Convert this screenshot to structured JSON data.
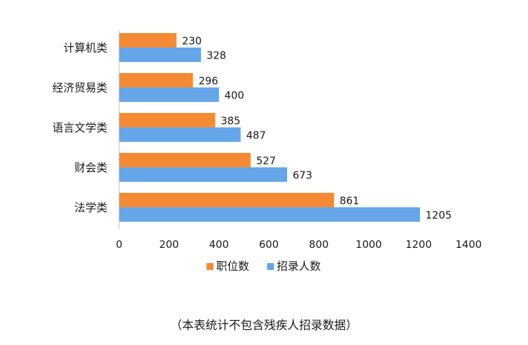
{
  "chart_data": {
    "type": "bar",
    "orientation": "horizontal",
    "categories": [
      "计算机类",
      "经济贸易类",
      "语言文学类",
      "财会类",
      "法学类"
    ],
    "series": [
      {
        "name": "职位数",
        "color": "#F58A34",
        "values": [
          230,
          296,
          385,
          527,
          861
        ]
      },
      {
        "name": "招录人数",
        "color": "#64A6E8",
        "values": [
          328,
          400,
          487,
          673,
          1205
        ]
      }
    ],
    "xlim": [
      0,
      1400
    ],
    "x_ticks": [
      0,
      200,
      400,
      600,
      800,
      1000,
      1200,
      1400
    ],
    "grid": false,
    "legend_position": "bottom"
  },
  "footnote": "（本表统计不包含残疾人招录数据）"
}
